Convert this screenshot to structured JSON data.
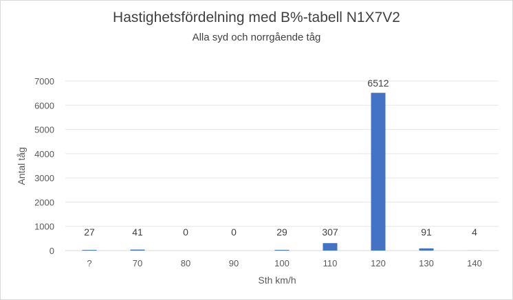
{
  "chart_data": {
    "type": "bar",
    "title": "Hastighetsfördelning med B%-tabell N1X7V2",
    "subtitle": "Alla syd och norrgående tåg",
    "xlabel": "Sth km/h",
    "ylabel": "Antal tåg",
    "categories": [
      "?",
      "70",
      "80",
      "90",
      "100",
      "110",
      "120",
      "130",
      "140"
    ],
    "values": [
      27,
      41,
      0,
      0,
      29,
      307,
      6512,
      91,
      4
    ],
    "ylim": [
      0,
      7000
    ],
    "yticks": [
      0,
      1000,
      2000,
      3000,
      4000,
      5000,
      6000,
      7000
    ],
    "grid": true,
    "legend": "none",
    "bar_color": "#4472c4"
  }
}
